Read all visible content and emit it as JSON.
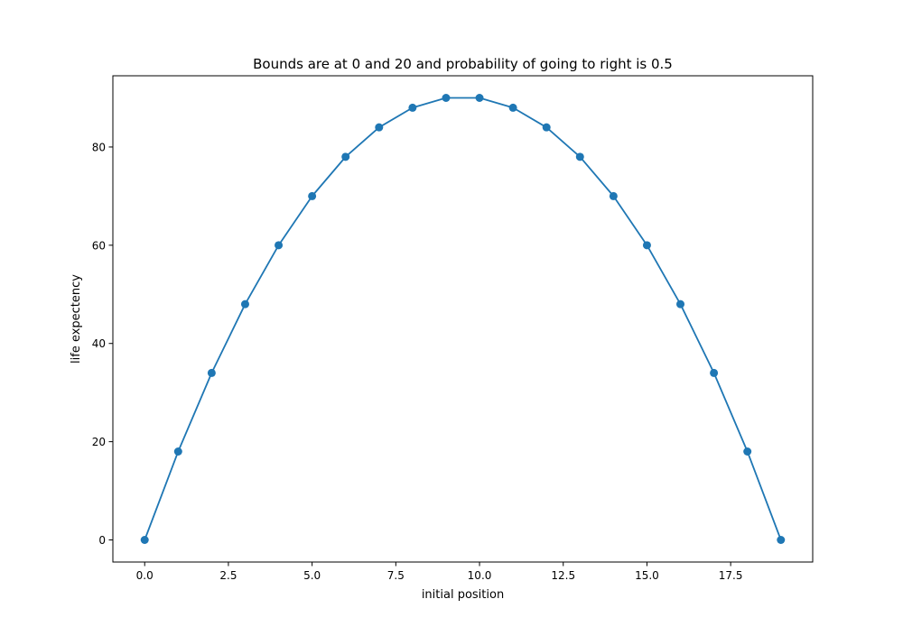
{
  "chart_data": {
    "type": "line",
    "title": "Bounds are at 0 and 20 and probability of going to right is 0.5",
    "xlabel": "initial position",
    "ylabel": "life expectency",
    "x": [
      0,
      1,
      2,
      3,
      4,
      5,
      6,
      7,
      8,
      9,
      10,
      11,
      12,
      13,
      14,
      15,
      16,
      17,
      18,
      19
    ],
    "series": [
      {
        "values": [
          0,
          18,
          34,
          48,
          60,
          70,
          78,
          84,
          88,
          90,
          90,
          88,
          84,
          78,
          70,
          60,
          48,
          34,
          18,
          0
        ],
        "color": "#1f77b4",
        "marker": "circle"
      }
    ],
    "xlim": [
      -0.95,
      19.95
    ],
    "ylim": [
      -4.5,
      94.5
    ],
    "xticks": [
      0.0,
      2.5,
      5.0,
      7.5,
      10.0,
      12.5,
      15.0,
      17.5
    ],
    "xtick_labels": [
      "0.0",
      "2.5",
      "5.0",
      "7.5",
      "10.0",
      "12.5",
      "15.0",
      "17.5"
    ],
    "yticks": [
      0,
      20,
      40,
      60,
      80
    ],
    "ytick_labels": [
      "0",
      "20",
      "40",
      "60",
      "80"
    ],
    "grid": false,
    "legend": "none"
  }
}
